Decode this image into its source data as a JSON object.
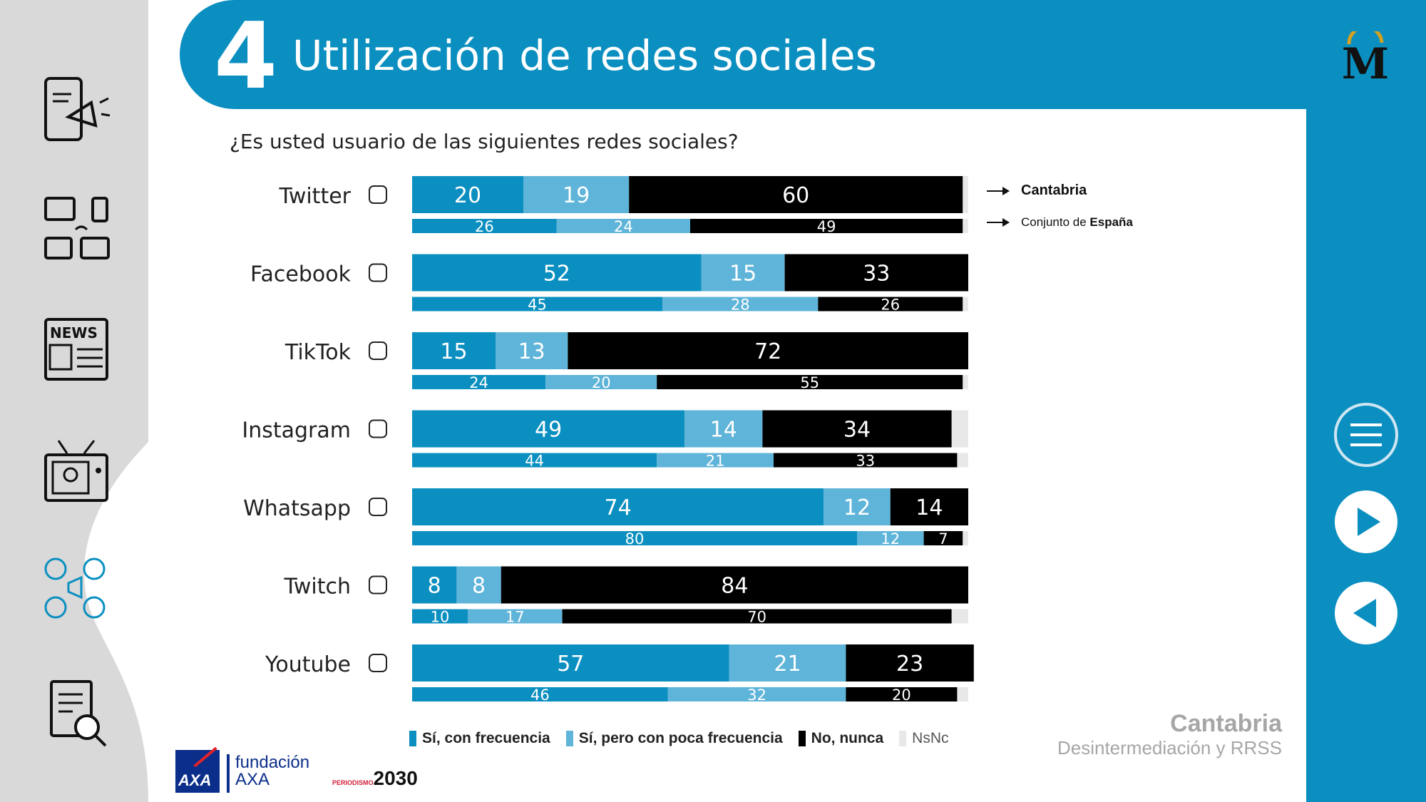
{
  "header": {
    "section_number": "4",
    "title": "Utilización de redes sociales"
  },
  "question": "¿Es usted usuario de las siguientes redes sociales?",
  "reference_legend": {
    "region_label": "Cantabria",
    "national_prefix": "Conjunto de ",
    "national_bold": "España"
  },
  "footer": {
    "region": "Cantabria",
    "subtitle": "Desintermediación y RRSS"
  },
  "logos": {
    "axa_text": "AXA",
    "fundacion_line1": "fundación",
    "fundacion_line2": "AXA",
    "periodismo_small": "PERIODISMO",
    "periodismo_big": "2030"
  },
  "colors": {
    "frequent": "#0b8fc0",
    "rare": "#5fb4d9",
    "never": "#000000",
    "nsnc": "#e8e8e8",
    "brand": "#0b8fc0"
  },
  "nav": {
    "menu": "menu-icon",
    "next": "play-icon",
    "prev": "back-icon"
  },
  "chart_data": {
    "type": "bar",
    "orientation": "horizontal-stacked",
    "categories": [
      "Twitter",
      "Facebook",
      "TikTok",
      "Instagram",
      "Whatsapp",
      "Twitch",
      "Youtube"
    ],
    "legend": [
      "Sí, con frecuencia",
      "Sí, pero con poca frecuencia",
      "No, nunca",
      "NsNc"
    ],
    "series_cantabria": [
      {
        "name": "Sí, con frecuencia",
        "values": [
          20,
          52,
          15,
          49,
          74,
          8,
          57
        ]
      },
      {
        "name": "Sí, pero con poca frecuencia",
        "values": [
          19,
          15,
          13,
          14,
          12,
          8,
          21
        ]
      },
      {
        "name": "No, nunca",
        "values": [
          60,
          33,
          72,
          34,
          14,
          84,
          23
        ]
      }
    ],
    "series_espana": [
      {
        "name": "Sí, con frecuencia",
        "values": [
          26,
          45,
          24,
          44,
          80,
          10,
          46
        ]
      },
      {
        "name": "Sí, pero con poca frecuencia",
        "values": [
          24,
          28,
          20,
          21,
          12,
          17,
          32
        ]
      },
      {
        "name": "No, nunca",
        "values": [
          49,
          26,
          55,
          33,
          7,
          70,
          20
        ]
      }
    ],
    "xlim": [
      0,
      100
    ]
  }
}
